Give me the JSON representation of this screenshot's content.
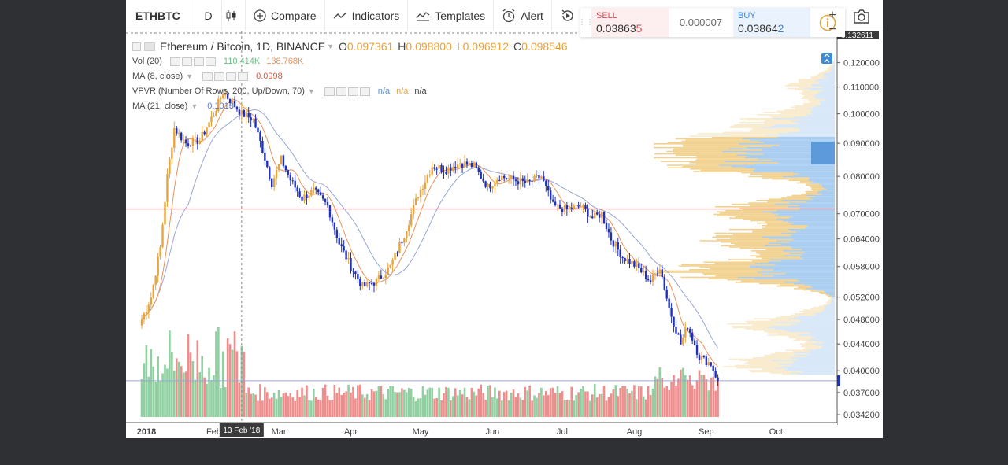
{
  "toolbar": {
    "symbol": "ETHBTC",
    "interval": "D",
    "compare": "Compare",
    "indicators": "Indicators",
    "templates": "Templates",
    "alert": "Alert"
  },
  "trade": {
    "sell_label": "SELL",
    "sell_price_main": "0.03863",
    "sell_price_tail": "5",
    "spread": "0.000007",
    "buy_label": "BUY",
    "buy_price_main": "0.03864",
    "buy_price_tail": "2"
  },
  "legend": {
    "title": "Ethereum / Bitcoin, 1D, BINANCE",
    "o_label": "O",
    "o": "0.097361",
    "h_label": "H",
    "h": "0.098800",
    "l_label": "L",
    "l": "0.096912",
    "c_label": "C",
    "c": "0.098546",
    "vol": "Vol (20)",
    "vol_v1": "110.414K",
    "vol_v2": "138.768K",
    "ma8": "MA (8, close)",
    "ma8_v": "0.0998",
    "vpvr": "VPVR (Number Of Rows, 200, Up/Down, 70)",
    "vpvr_v1": "n/a",
    "vpvr_v2": "n/a",
    "vpvr_v3": "n/a",
    "ma21": "MA (21, close)",
    "ma21_v": "0.1013"
  },
  "colors": {
    "up": "#e8a33a",
    "down": "#1f2fbf",
    "ma8": "#e8925a",
    "ma21": "#9aa6d6",
    "vol_up": "#8fcfa0",
    "vol_down": "#ef8c8c",
    "vpvr_up": "#f2d291",
    "vpvr_down": "#a9cdf0",
    "hline": "#b5484a"
  },
  "axis": {
    "top_value": "0.132611",
    "y_ticks": [
      "0.120000",
      "0.110000",
      "0.100000",
      "0.090000",
      "0.080000",
      "0.070000",
      "0.064000",
      "0.058000",
      "0.052000",
      "0.048000",
      "0.044000",
      "0.040000",
      "0.037000",
      "0.034200"
    ],
    "x_ticks": [
      "2018",
      "Feb",
      "Mar",
      "Apr",
      "May",
      "Jun",
      "Jul",
      "Aug",
      "Sep",
      "Oct"
    ],
    "crosshair_label": "13 Feb '18"
  },
  "chart_data": {
    "type": "candlestick",
    "symbol": "ETHBTC",
    "interval": "1D",
    "exchange": "BINANCE",
    "y_scale": "log",
    "ylim": [
      0.0342,
      0.1326
    ],
    "x_range": [
      "2018-01-01",
      "2018-10-31"
    ],
    "horizontal_line": 0.0712,
    "price_path": [
      {
        "date": "2018-01-01",
        "close": 0.048
      },
      {
        "date": "2018-01-05",
        "close": 0.052
      },
      {
        "date": "2018-01-09",
        "close": 0.062
      },
      {
        "date": "2018-01-12",
        "close": 0.08
      },
      {
        "date": "2018-01-15",
        "close": 0.095
      },
      {
        "date": "2018-01-20",
        "close": 0.09
      },
      {
        "date": "2018-01-26",
        "close": 0.091
      },
      {
        "date": "2018-02-01",
        "close": 0.1
      },
      {
        "date": "2018-02-05",
        "close": 0.108
      },
      {
        "date": "2018-02-08",
        "close": 0.105
      },
      {
        "date": "2018-02-13",
        "close": 0.1
      },
      {
        "date": "2018-02-18",
        "close": 0.098
      },
      {
        "date": "2018-02-22",
        "close": 0.088
      },
      {
        "date": "2018-02-26",
        "close": 0.078
      },
      {
        "date": "2018-03-02",
        "close": 0.085
      },
      {
        "date": "2018-03-06",
        "close": 0.079
      },
      {
        "date": "2018-03-11",
        "close": 0.074
      },
      {
        "date": "2018-03-16",
        "close": 0.076
      },
      {
        "date": "2018-03-22",
        "close": 0.072
      },
      {
        "date": "2018-03-27",
        "close": 0.063
      },
      {
        "date": "2018-04-01",
        "close": 0.058
      },
      {
        "date": "2018-04-06",
        "close": 0.054
      },
      {
        "date": "2018-04-12",
        "close": 0.055
      },
      {
        "date": "2018-04-18",
        "close": 0.058
      },
      {
        "date": "2018-04-24",
        "close": 0.065
      },
      {
        "date": "2018-04-30",
        "close": 0.075
      },
      {
        "date": "2018-05-06",
        "close": 0.083
      },
      {
        "date": "2018-05-12",
        "close": 0.082
      },
      {
        "date": "2018-05-18",
        "close": 0.084
      },
      {
        "date": "2018-05-24",
        "close": 0.083
      },
      {
        "date": "2018-05-30",
        "close": 0.077
      },
      {
        "date": "2018-06-04",
        "close": 0.08
      },
      {
        "date": "2018-06-10",
        "close": 0.079
      },
      {
        "date": "2018-06-16",
        "close": 0.078
      },
      {
        "date": "2018-06-22",
        "close": 0.08
      },
      {
        "date": "2018-06-27",
        "close": 0.072
      },
      {
        "date": "2018-07-03",
        "close": 0.071
      },
      {
        "date": "2018-07-09",
        "close": 0.072
      },
      {
        "date": "2018-07-14",
        "close": 0.069
      },
      {
        "date": "2018-07-18",
        "close": 0.07
      },
      {
        "date": "2018-07-22",
        "close": 0.064
      },
      {
        "date": "2018-07-27",
        "close": 0.06
      },
      {
        "date": "2018-08-02",
        "close": 0.058
      },
      {
        "date": "2018-08-08",
        "close": 0.055
      },
      {
        "date": "2018-08-12",
        "close": 0.058
      },
      {
        "date": "2018-08-16",
        "close": 0.05
      },
      {
        "date": "2018-08-21",
        "close": 0.044
      },
      {
        "date": "2018-08-24",
        "close": 0.047
      },
      {
        "date": "2018-08-29",
        "close": 0.042
      },
      {
        "date": "2018-09-03",
        "close": 0.041
      },
      {
        "date": "2018-09-06",
        "close": 0.0386
      }
    ]
  }
}
